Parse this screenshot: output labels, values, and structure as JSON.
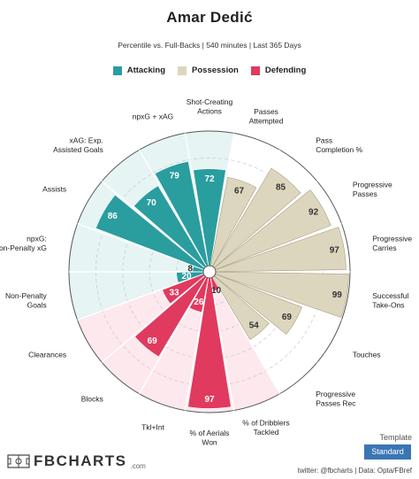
{
  "header": {
    "title": "Amar Dedić",
    "subtitle": "Percentile vs. Full-Backs | 540 minutes | Last 365 Days"
  },
  "legend": [
    {
      "label": "Attacking",
      "color": "#2a9d9f"
    },
    {
      "label": "Possession",
      "color": "#ddd6bf"
    },
    {
      "label": "Defending",
      "color": "#e03a5f"
    }
  ],
  "colors": {
    "attacking": "#2a9d9f",
    "possession": "#ddd6bf",
    "defending": "#e03a5f",
    "attacking_bg": "#e6f4f4",
    "possession_bg": "#ffffff",
    "defending_bg": "#fde8ee",
    "template_button": "#3a76b5"
  },
  "chart_data": {
    "type": "polar-bar",
    "rlim": [
      0,
      100
    ],
    "start_label": "Shot-Creating Actions",
    "direction": "clockwise",
    "categories": [
      {
        "label": "Shot-Creating Actions",
        "value": 72,
        "group": "attacking"
      },
      {
        "label": "Passes Attempted",
        "value": 67,
        "group": "possession"
      },
      {
        "label": "Pass Completion %",
        "value": 85,
        "group": "possession"
      },
      {
        "label": "Progressive Passes",
        "value": 92,
        "group": "possession"
      },
      {
        "label": "Progressive Carries",
        "value": 97,
        "group": "possession"
      },
      {
        "label": "Successful Take-Ons",
        "value": 99,
        "group": "possession"
      },
      {
        "label": "Touches",
        "value": 69,
        "group": "possession"
      },
      {
        "label": "Progressive Passes Rec",
        "value": 54,
        "group": "possession"
      },
      {
        "label": "% of Dribblers Tackled",
        "value": 10,
        "group": "defending"
      },
      {
        "label": "% of Aerials Won",
        "value": 97,
        "group": "defending"
      },
      {
        "label": "Tkl+Int",
        "value": 26,
        "group": "defending"
      },
      {
        "label": "Blocks",
        "value": 69,
        "group": "defending"
      },
      {
        "label": "Clearances",
        "value": 33,
        "group": "defending"
      },
      {
        "label": "Non-Penalty Goals",
        "value": 20,
        "group": "attacking"
      },
      {
        "label": "npxG: Non-Penalty xG",
        "value": 8,
        "group": "attacking"
      },
      {
        "label": "Assists",
        "value": 86,
        "group": "attacking"
      },
      {
        "label": "xAG: Exp. Assisted Goals",
        "value": 70,
        "group": "attacking"
      },
      {
        "label": "npxG + xAG",
        "value": 79,
        "group": "attacking"
      }
    ]
  },
  "footer": {
    "template_label": "Template",
    "template_button": "Standard",
    "credit": "twitter: @fbcharts | Data: Opta/FBref",
    "logo_text": "FBCHARTS",
    "logo_suffix": ".com"
  }
}
